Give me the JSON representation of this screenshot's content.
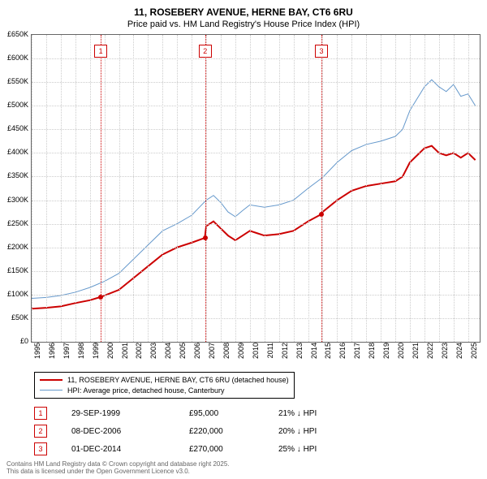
{
  "title": "11, ROSEBERY AVENUE, HERNE BAY, CT6 6RU",
  "subtitle": "Price paid vs. HM Land Registry's House Price Index (HPI)",
  "chart": {
    "type": "line",
    "x_axis": {
      "min": 1995,
      "max": 2025.8,
      "ticks": [
        1995,
        1996,
        1997,
        1998,
        1999,
        2000,
        2001,
        2002,
        2003,
        2004,
        2005,
        2006,
        2007,
        2008,
        2009,
        2010,
        2011,
        2012,
        2013,
        2014,
        2015,
        2016,
        2017,
        2018,
        2019,
        2020,
        2021,
        2022,
        2023,
        2024,
        2025
      ]
    },
    "y_axis": {
      "min": 0,
      "max": 650000,
      "tick_step": 50000,
      "prefix": "£",
      "suffix": "K",
      "ticks": [
        0,
        50,
        100,
        150,
        200,
        250,
        300,
        350,
        400,
        450,
        500,
        550,
        600,
        650
      ]
    },
    "grid_color": "#cccccc",
    "background_color": "#ffffff",
    "series": [
      {
        "name": "11, ROSEBERY AVENUE, HERNE BAY, CT6 6RU (detached house)",
        "color": "#cc0000",
        "width": 2,
        "data": [
          [
            1995,
            70000
          ],
          [
            1996,
            72000
          ],
          [
            1997,
            75000
          ],
          [
            1998,
            82000
          ],
          [
            1999,
            88000
          ],
          [
            1999.75,
            95000
          ],
          [
            2000,
            98000
          ],
          [
            2001,
            110000
          ],
          [
            2002,
            135000
          ],
          [
            2003,
            160000
          ],
          [
            2004,
            185000
          ],
          [
            2005,
            200000
          ],
          [
            2006,
            210000
          ],
          [
            2006.9,
            220000
          ],
          [
            2007,
            245000
          ],
          [
            2007.5,
            255000
          ],
          [
            2008,
            240000
          ],
          [
            2008.5,
            225000
          ],
          [
            2009,
            215000
          ],
          [
            2009.5,
            225000
          ],
          [
            2010,
            235000
          ],
          [
            2010.5,
            230000
          ],
          [
            2011,
            225000
          ],
          [
            2012,
            228000
          ],
          [
            2013,
            235000
          ],
          [
            2014,
            255000
          ],
          [
            2014.9,
            270000
          ],
          [
            2015,
            275000
          ],
          [
            2016,
            300000
          ],
          [
            2017,
            320000
          ],
          [
            2018,
            330000
          ],
          [
            2019,
            335000
          ],
          [
            2020,
            340000
          ],
          [
            2020.5,
            350000
          ],
          [
            2021,
            380000
          ],
          [
            2022,
            410000
          ],
          [
            2022.5,
            415000
          ],
          [
            2023,
            400000
          ],
          [
            2023.5,
            395000
          ],
          [
            2024,
            400000
          ],
          [
            2024.5,
            390000
          ],
          [
            2025,
            400000
          ],
          [
            2025.5,
            385000
          ]
        ]
      },
      {
        "name": "HPI: Average price, detached house, Canterbury",
        "color": "#6699cc",
        "width": 1,
        "data": [
          [
            1995,
            92000
          ],
          [
            1996,
            94000
          ],
          [
            1997,
            98000
          ],
          [
            1998,
            105000
          ],
          [
            1999,
            115000
          ],
          [
            2000,
            128000
          ],
          [
            2001,
            145000
          ],
          [
            2002,
            175000
          ],
          [
            2003,
            205000
          ],
          [
            2004,
            235000
          ],
          [
            2005,
            250000
          ],
          [
            2006,
            268000
          ],
          [
            2007,
            300000
          ],
          [
            2007.5,
            310000
          ],
          [
            2008,
            295000
          ],
          [
            2008.5,
            275000
          ],
          [
            2009,
            265000
          ],
          [
            2009.5,
            278000
          ],
          [
            2010,
            290000
          ],
          [
            2011,
            285000
          ],
          [
            2012,
            290000
          ],
          [
            2013,
            300000
          ],
          [
            2014,
            325000
          ],
          [
            2015,
            348000
          ],
          [
            2016,
            380000
          ],
          [
            2017,
            405000
          ],
          [
            2018,
            418000
          ],
          [
            2019,
            425000
          ],
          [
            2020,
            435000
          ],
          [
            2020.5,
            450000
          ],
          [
            2021,
            490000
          ],
          [
            2022,
            540000
          ],
          [
            2022.5,
            555000
          ],
          [
            2023,
            540000
          ],
          [
            2023.5,
            530000
          ],
          [
            2024,
            545000
          ],
          [
            2024.5,
            520000
          ],
          [
            2025,
            525000
          ],
          [
            2025.5,
            500000
          ]
        ]
      }
    ],
    "markers": [
      {
        "n": "1",
        "x": 1999.75,
        "y": 95000,
        "color": "#cc0000"
      },
      {
        "n": "2",
        "x": 2006.93,
        "y": 220000,
        "color": "#cc0000"
      },
      {
        "n": "3",
        "x": 2014.92,
        "y": 270000,
        "color": "#cc0000"
      }
    ]
  },
  "legend": {
    "items": [
      {
        "color": "#cc0000",
        "label": "11, ROSEBERY AVENUE, HERNE BAY, CT6 6RU (detached house)",
        "width": 2
      },
      {
        "color": "#6699cc",
        "label": "HPI: Average price, detached house, Canterbury",
        "width": 1
      }
    ]
  },
  "marker_table": [
    {
      "n": "1",
      "color": "#cc0000",
      "date": "29-SEP-1999",
      "price": "£95,000",
      "pct": "21% ↓ HPI"
    },
    {
      "n": "2",
      "color": "#cc0000",
      "date": "08-DEC-2006",
      "price": "£220,000",
      "pct": "20% ↓ HPI"
    },
    {
      "n": "3",
      "color": "#cc0000",
      "date": "01-DEC-2014",
      "price": "£270,000",
      "pct": "25% ↓ HPI"
    }
  ],
  "footnote_line1": "Contains HM Land Registry data © Crown copyright and database right 2025.",
  "footnote_line2": "This data is licensed under the Open Government Licence v3.0."
}
